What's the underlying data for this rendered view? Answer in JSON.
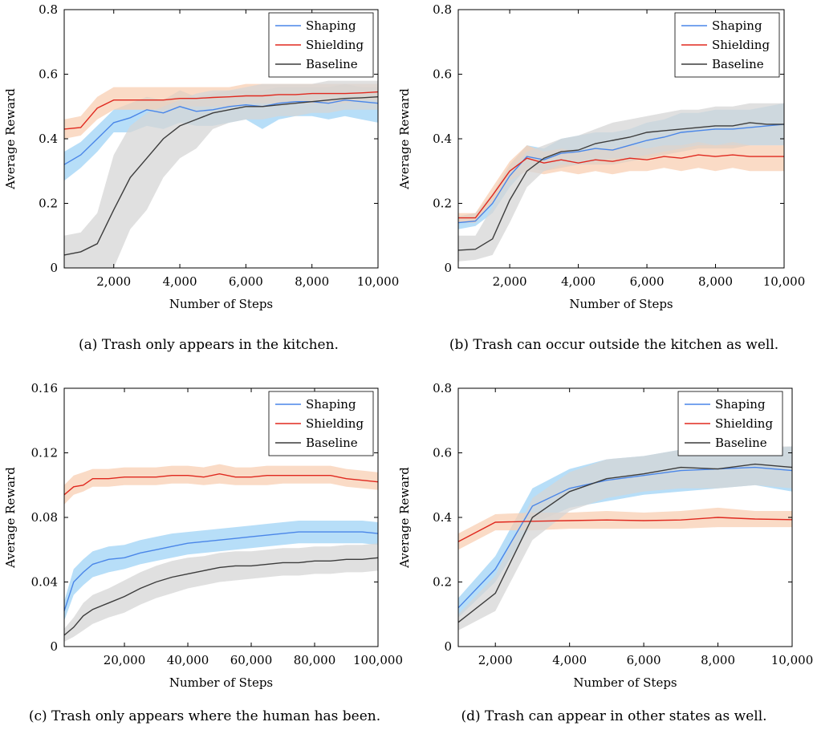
{
  "chart_data": [
    {
      "type": "line",
      "panel": "a",
      "caption": "(a) Trash only appears in the kitchen.",
      "xlabel": "Number of Steps",
      "ylabel": "Average Reward",
      "xlim": [
        500,
        10000
      ],
      "ylim": [
        0,
        0.8
      ],
      "xticks": [
        2000,
        4000,
        6000,
        8000,
        10000
      ],
      "xtick_labels": [
        "2,000",
        "4,000",
        "6,000",
        "8,000",
        "10,000"
      ],
      "yticks": [
        0,
        0.2,
        0.4,
        0.6,
        0.8
      ],
      "ytick_labels": [
        "0",
        "0.2",
        "0.4",
        "0.6",
        "0.8"
      ],
      "legend": "top-right",
      "grid": false,
      "x": [
        500,
        1000,
        1500,
        2000,
        2500,
        3000,
        3500,
        4000,
        4500,
        5000,
        5500,
        6000,
        6500,
        7000,
        7500,
        8000,
        8500,
        9000,
        9500,
        10000
      ],
      "series": [
        {
          "name": "Shaping",
          "color": "#4a86e8",
          "band": "#9fd3f5",
          "values": [
            0.32,
            0.35,
            0.4,
            0.45,
            0.465,
            0.49,
            0.48,
            0.5,
            0.485,
            0.49,
            0.5,
            0.505,
            0.5,
            0.51,
            0.515,
            0.515,
            0.51,
            0.52,
            0.515,
            0.51
          ],
          "lower": [
            0.27,
            0.31,
            0.36,
            0.42,
            0.42,
            0.44,
            0.43,
            0.45,
            0.44,
            0.44,
            0.45,
            0.46,
            0.43,
            0.46,
            0.47,
            0.47,
            0.46,
            0.47,
            0.46,
            0.45
          ],
          "upper": [
            0.36,
            0.39,
            0.44,
            0.49,
            0.51,
            0.53,
            0.52,
            0.55,
            0.53,
            0.54,
            0.55,
            0.55,
            0.55,
            0.56,
            0.56,
            0.56,
            0.56,
            0.57,
            0.56,
            0.56
          ]
        },
        {
          "name": "Shielding",
          "color": "#e0291f",
          "band": "#f8cfb3",
          "values": [
            0.43,
            0.435,
            0.495,
            0.52,
            0.52,
            0.52,
            0.52,
            0.525,
            0.525,
            0.528,
            0.53,
            0.533,
            0.533,
            0.537,
            0.537,
            0.54,
            0.54,
            0.54,
            0.542,
            0.545
          ],
          "lower": [
            0.4,
            0.41,
            0.46,
            0.49,
            0.49,
            0.49,
            0.49,
            0.5,
            0.5,
            0.5,
            0.5,
            0.51,
            0.51,
            0.51,
            0.51,
            0.51,
            0.51,
            0.51,
            0.52,
            0.52
          ],
          "upper": [
            0.46,
            0.47,
            0.53,
            0.56,
            0.56,
            0.56,
            0.56,
            0.56,
            0.56,
            0.56,
            0.56,
            0.57,
            0.57,
            0.57,
            0.57,
            0.57,
            0.57,
            0.57,
            0.57,
            0.57
          ]
        },
        {
          "name": "Baseline",
          "color": "#3c3c3c",
          "band": "#d6d6d6",
          "values": [
            0.04,
            0.05,
            0.075,
            0.18,
            0.28,
            0.34,
            0.4,
            0.44,
            0.46,
            0.48,
            0.49,
            0.5,
            0.5,
            0.505,
            0.51,
            0.515,
            0.52,
            0.525,
            0.527,
            0.53
          ],
          "lower": [
            0.0,
            0.0,
            0.0,
            0.0,
            0.12,
            0.18,
            0.28,
            0.34,
            0.37,
            0.43,
            0.45,
            0.46,
            0.46,
            0.47,
            0.47,
            0.48,
            0.48,
            0.49,
            0.49,
            0.49
          ],
          "upper": [
            0.1,
            0.11,
            0.17,
            0.35,
            0.44,
            0.48,
            0.5,
            0.52,
            0.54,
            0.55,
            0.55,
            0.56,
            0.57,
            0.57,
            0.57,
            0.57,
            0.58,
            0.58,
            0.58,
            0.58
          ]
        }
      ]
    },
    {
      "type": "line",
      "panel": "b",
      "caption": "(b) Trash can occur outside the kitchen as well.",
      "xlabel": "Number of Steps",
      "ylabel": "Average Reward",
      "xlim": [
        500,
        10000
      ],
      "ylim": [
        0,
        0.8
      ],
      "xticks": [
        2000,
        4000,
        6000,
        8000,
        10000
      ],
      "xtick_labels": [
        "2,000",
        "4,000",
        "6,000",
        "8,000",
        "10,000"
      ],
      "yticks": [
        0,
        0.2,
        0.4,
        0.6,
        0.8
      ],
      "ytick_labels": [
        "0",
        "0.2",
        "0.4",
        "0.6",
        "0.8"
      ],
      "legend": "top-right",
      "grid": false,
      "x": [
        500,
        1000,
        1500,
        2000,
        2500,
        3000,
        3500,
        4000,
        4500,
        5000,
        5500,
        6000,
        6500,
        7000,
        7500,
        8000,
        8500,
        9000,
        9500,
        10000
      ],
      "series": [
        {
          "name": "Shaping",
          "color": "#4a86e8",
          "band": "#9fd3f5",
          "values": [
            0.14,
            0.145,
            0.2,
            0.285,
            0.345,
            0.335,
            0.355,
            0.36,
            0.37,
            0.365,
            0.38,
            0.395,
            0.405,
            0.42,
            0.425,
            0.43,
            0.43,
            0.435,
            0.44,
            0.445
          ],
          "lower": [
            0.12,
            0.13,
            0.17,
            0.25,
            0.31,
            0.3,
            0.31,
            0.32,
            0.32,
            0.32,
            0.33,
            0.34,
            0.35,
            0.36,
            0.37,
            0.37,
            0.37,
            0.38,
            0.38,
            0.38
          ],
          "upper": [
            0.16,
            0.17,
            0.23,
            0.32,
            0.38,
            0.37,
            0.4,
            0.41,
            0.42,
            0.42,
            0.43,
            0.45,
            0.46,
            0.48,
            0.48,
            0.49,
            0.49,
            0.49,
            0.5,
            0.51
          ]
        },
        {
          "name": "Shielding",
          "color": "#e0291f",
          "band": "#f8cfb3",
          "values": [
            0.155,
            0.155,
            0.225,
            0.3,
            0.34,
            0.325,
            0.335,
            0.325,
            0.335,
            0.33,
            0.34,
            0.335,
            0.345,
            0.34,
            0.35,
            0.345,
            0.35,
            0.345,
            0.345,
            0.345
          ],
          "lower": [
            0.14,
            0.14,
            0.2,
            0.27,
            0.3,
            0.29,
            0.3,
            0.29,
            0.3,
            0.29,
            0.3,
            0.3,
            0.31,
            0.3,
            0.31,
            0.3,
            0.31,
            0.3,
            0.3,
            0.3
          ],
          "upper": [
            0.17,
            0.17,
            0.25,
            0.33,
            0.38,
            0.36,
            0.37,
            0.36,
            0.37,
            0.37,
            0.38,
            0.37,
            0.38,
            0.38,
            0.39,
            0.38,
            0.39,
            0.38,
            0.38,
            0.38
          ]
        },
        {
          "name": "Baseline",
          "color": "#3c3c3c",
          "band": "#d6d6d6",
          "values": [
            0.055,
            0.058,
            0.09,
            0.21,
            0.3,
            0.34,
            0.36,
            0.365,
            0.385,
            0.395,
            0.405,
            0.42,
            0.425,
            0.43,
            0.435,
            0.44,
            0.44,
            0.45,
            0.445,
            0.445
          ],
          "lower": [
            0.02,
            0.025,
            0.04,
            0.14,
            0.25,
            0.3,
            0.32,
            0.32,
            0.33,
            0.34,
            0.34,
            0.35,
            0.36,
            0.37,
            0.38,
            0.38,
            0.38,
            0.38,
            0.38,
            0.38
          ],
          "upper": [
            0.1,
            0.1,
            0.19,
            0.3,
            0.36,
            0.38,
            0.4,
            0.41,
            0.43,
            0.45,
            0.46,
            0.47,
            0.48,
            0.49,
            0.49,
            0.5,
            0.5,
            0.51,
            0.51,
            0.51
          ]
        }
      ]
    },
    {
      "type": "line",
      "panel": "c",
      "caption": "(c) Trash only appears where the human has been.",
      "xlabel": "Number of Steps",
      "ylabel": "Average Reward",
      "xlim": [
        1000,
        100000
      ],
      "ylim": [
        0,
        0.16
      ],
      "xticks": [
        20000,
        40000,
        60000,
        80000,
        100000
      ],
      "xtick_labels": [
        "20,000",
        "40,000",
        "60,000",
        "80,000",
        "100,000"
      ],
      "yticks": [
        0,
        0.04,
        0.08,
        0.12,
        0.16
      ],
      "ytick_labels": [
        "0",
        "0.04",
        "0.08",
        "0.12",
        "0.16"
      ],
      "legend": "top-right",
      "grid": false,
      "x": [
        1000,
        4000,
        7000,
        10000,
        15000,
        20000,
        25000,
        30000,
        35000,
        40000,
        45000,
        50000,
        55000,
        60000,
        65000,
        70000,
        75000,
        80000,
        85000,
        90000,
        95000,
        100000
      ],
      "series": [
        {
          "name": "Shaping",
          "color": "#4a86e8",
          "band": "#9fd3f5",
          "values": [
            0.022,
            0.04,
            0.046,
            0.051,
            0.054,
            0.055,
            0.058,
            0.06,
            0.062,
            0.064,
            0.065,
            0.066,
            0.067,
            0.068,
            0.069,
            0.07,
            0.071,
            0.071,
            0.071,
            0.071,
            0.071,
            0.07
          ],
          "lower": [
            0.016,
            0.032,
            0.038,
            0.043,
            0.046,
            0.048,
            0.051,
            0.053,
            0.055,
            0.057,
            0.058,
            0.059,
            0.06,
            0.061,
            0.062,
            0.063,
            0.064,
            0.064,
            0.064,
            0.064,
            0.064,
            0.063
          ],
          "upper": [
            0.028,
            0.048,
            0.054,
            0.059,
            0.062,
            0.063,
            0.066,
            0.068,
            0.07,
            0.071,
            0.072,
            0.073,
            0.074,
            0.075,
            0.076,
            0.077,
            0.078,
            0.078,
            0.078,
            0.078,
            0.078,
            0.077
          ]
        },
        {
          "name": "Shielding",
          "color": "#e0291f",
          "band": "#f8cfb3",
          "values": [
            0.094,
            0.099,
            0.1,
            0.104,
            0.104,
            0.105,
            0.105,
            0.105,
            0.106,
            0.106,
            0.105,
            0.107,
            0.105,
            0.105,
            0.106,
            0.106,
            0.106,
            0.106,
            0.106,
            0.104,
            0.103,
            0.102
          ],
          "lower": [
            0.088,
            0.094,
            0.096,
            0.099,
            0.099,
            0.1,
            0.1,
            0.1,
            0.101,
            0.101,
            0.1,
            0.101,
            0.1,
            0.1,
            0.1,
            0.101,
            0.101,
            0.101,
            0.101,
            0.099,
            0.098,
            0.097
          ],
          "upper": [
            0.1,
            0.106,
            0.108,
            0.11,
            0.11,
            0.111,
            0.111,
            0.111,
            0.112,
            0.112,
            0.111,
            0.113,
            0.111,
            0.111,
            0.112,
            0.112,
            0.112,
            0.112,
            0.112,
            0.11,
            0.109,
            0.108
          ]
        },
        {
          "name": "Baseline",
          "color": "#3c3c3c",
          "band": "#d6d6d6",
          "values": [
            0.007,
            0.012,
            0.019,
            0.023,
            0.027,
            0.031,
            0.036,
            0.04,
            0.043,
            0.045,
            0.047,
            0.049,
            0.05,
            0.05,
            0.051,
            0.052,
            0.052,
            0.053,
            0.053,
            0.054,
            0.054,
            0.055
          ],
          "lower": [
            0.003,
            0.006,
            0.01,
            0.014,
            0.018,
            0.021,
            0.026,
            0.03,
            0.033,
            0.036,
            0.038,
            0.04,
            0.041,
            0.042,
            0.043,
            0.044,
            0.044,
            0.045,
            0.045,
            0.046,
            0.046,
            0.047
          ],
          "upper": [
            0.011,
            0.018,
            0.027,
            0.032,
            0.036,
            0.041,
            0.046,
            0.05,
            0.053,
            0.055,
            0.056,
            0.058,
            0.059,
            0.059,
            0.06,
            0.061,
            0.061,
            0.062,
            0.062,
            0.063,
            0.063,
            0.064
          ]
        }
      ]
    },
    {
      "type": "line",
      "panel": "d",
      "caption": "(d) Trash can appear in other states as well.",
      "xlabel": "Number of Steps",
      "ylabel": "Average Reward",
      "xlim": [
        1000,
        10000
      ],
      "ylim": [
        0,
        0.8
      ],
      "xticks": [
        2000,
        4000,
        6000,
        8000,
        10000
      ],
      "xtick_labels": [
        "2,000",
        "4,000",
        "6,000",
        "8,000",
        "10,000"
      ],
      "yticks": [
        0,
        0.2,
        0.4,
        0.6,
        0.8
      ],
      "ytick_labels": [
        "0",
        "0.2",
        "0.4",
        "0.6",
        "0.8"
      ],
      "legend": "top-right",
      "grid": false,
      "x": [
        1000,
        2000,
        3000,
        4000,
        5000,
        6000,
        7000,
        8000,
        9000,
        10000
      ],
      "series": [
        {
          "name": "Shaping",
          "color": "#4a86e8",
          "band": "#9fd3f5",
          "values": [
            0.12,
            0.24,
            0.435,
            0.49,
            0.515,
            0.53,
            0.545,
            0.55,
            0.555,
            0.545
          ],
          "lower": [
            0.09,
            0.2,
            0.38,
            0.43,
            0.45,
            0.47,
            0.48,
            0.49,
            0.5,
            0.48
          ],
          "upper": [
            0.15,
            0.28,
            0.49,
            0.55,
            0.58,
            0.59,
            0.61,
            0.61,
            0.61,
            0.62
          ]
        },
        {
          "name": "Shielding",
          "color": "#e0291f",
          "band": "#f8cfb3",
          "values": [
            0.325,
            0.385,
            0.388,
            0.39,
            0.392,
            0.39,
            0.392,
            0.4,
            0.395,
            0.393
          ],
          "lower": [
            0.3,
            0.36,
            0.36,
            0.365,
            0.365,
            0.365,
            0.365,
            0.37,
            0.37,
            0.37
          ],
          "upper": [
            0.35,
            0.41,
            0.415,
            0.415,
            0.42,
            0.415,
            0.42,
            0.43,
            0.42,
            0.42
          ]
        },
        {
          "name": "Baseline",
          "color": "#3c3c3c",
          "band": "#d6d6d6",
          "values": [
            0.075,
            0.165,
            0.4,
            0.48,
            0.52,
            0.535,
            0.555,
            0.55,
            0.565,
            0.555
          ],
          "lower": [
            0.05,
            0.11,
            0.33,
            0.42,
            0.46,
            0.48,
            0.49,
            0.49,
            0.5,
            0.49
          ],
          "upper": [
            0.1,
            0.22,
            0.46,
            0.54,
            0.58,
            0.59,
            0.61,
            0.61,
            0.62,
            0.62
          ]
        }
      ]
    }
  ]
}
